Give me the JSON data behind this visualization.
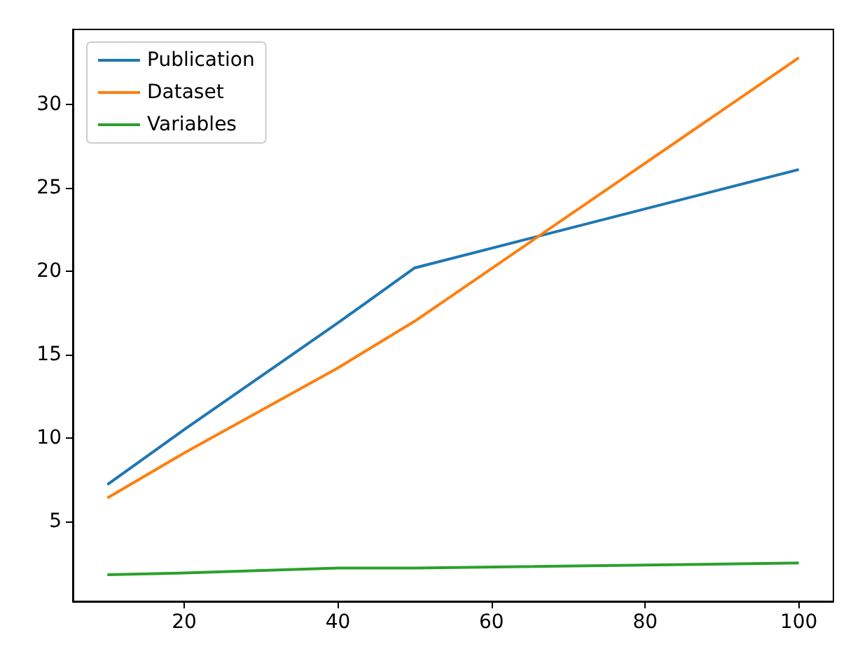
{
  "chart_data": {
    "type": "line",
    "x": [
      10,
      20,
      40,
      50,
      100
    ],
    "series": [
      {
        "name": "Publication",
        "color": "#1f77b4",
        "values": [
          7.2,
          10.5,
          16.9,
          20.2,
          26.1
        ]
      },
      {
        "name": "Dataset",
        "color": "#ff7f0e",
        "values": [
          6.4,
          9.1,
          14.2,
          17.0,
          32.8
        ]
      },
      {
        "name": "Variables",
        "color": "#2ca02c",
        "values": [
          1.8,
          1.9,
          2.2,
          2.2,
          2.5
        ]
      }
    ],
    "xlim": [
      5.5,
      104.5
    ],
    "xticks": [
      20,
      40,
      60,
      80,
      100
    ],
    "ylim": [
      0.2,
      34.5
    ],
    "yticks": [
      5,
      10,
      15,
      20,
      25,
      30
    ],
    "grid": false,
    "legend": "top left",
    "marker": "none",
    "line_style": "solid"
  }
}
